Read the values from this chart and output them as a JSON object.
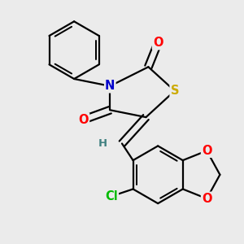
{
  "bg_color": "#ebebeb",
  "atom_colors": {
    "C": "#000000",
    "N": "#0000cc",
    "O": "#ff0000",
    "S": "#ccaa00",
    "Cl": "#00bb00",
    "H": "#408080"
  },
  "bond_color": "#000000",
  "bond_width": 1.6,
  "font_size": 10.5
}
